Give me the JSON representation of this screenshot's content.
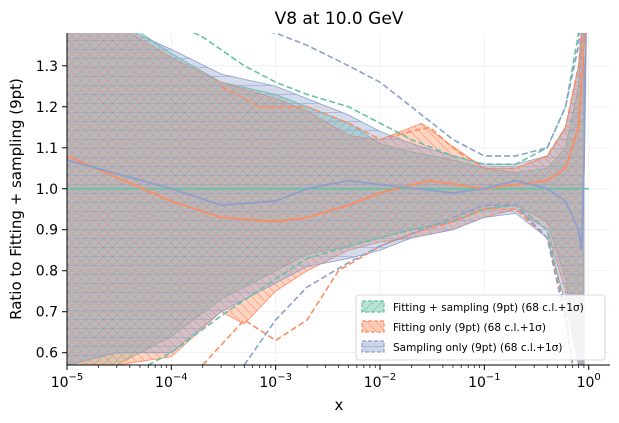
{
  "chart_data": {
    "type": "line",
    "title": "V8 at 10.0 GeV",
    "xlabel": "x",
    "ylabel": "Ratio to Fitting + sampling (9pt)",
    "xscale": "log",
    "xlim": [
      1e-05,
      1.6
    ],
    "ylim": [
      0.57,
      1.38
    ],
    "xticks": [
      {
        "value": 1e-05,
        "base": "10",
        "exp": "−5"
      },
      {
        "value": 0.0001,
        "base": "10",
        "exp": "−4"
      },
      {
        "value": 0.001,
        "base": "10",
        "exp": "−3"
      },
      {
        "value": 0.01,
        "base": "10",
        "exp": "−2"
      },
      {
        "value": 0.1,
        "base": "10",
        "exp": "−1"
      },
      {
        "value": 1,
        "base": "10",
        "exp": "0"
      }
    ],
    "yticks": [
      {
        "value": 0.6,
        "label": "0.6"
      },
      {
        "value": 0.7,
        "label": "0.7"
      },
      {
        "value": 0.8,
        "label": "0.8"
      },
      {
        "value": 0.9,
        "label": "0.9"
      },
      {
        "value": 1.0,
        "label": "1.0"
      },
      {
        "value": 1.1,
        "label": "1.1"
      },
      {
        "value": 1.2,
        "label": "1.2"
      },
      {
        "value": 1.3,
        "label": "1.3"
      }
    ],
    "grid": true,
    "legend_position": "lower-right",
    "series": [
      {
        "name": "Fitting + sampling (9pt) (68 c.l.+1σ)",
        "color": "#66c2a5",
        "band_upper": [
          [
            1e-05,
            1.42
          ],
          [
            3e-05,
            1.42
          ],
          [
            0.0001,
            1.33
          ],
          [
            0.0003,
            1.26
          ],
          [
            0.001,
            1.23
          ],
          [
            0.002,
            1.2
          ],
          [
            0.005,
            1.16
          ],
          [
            0.01,
            1.11
          ],
          [
            0.02,
            1.09
          ],
          [
            0.05,
            1.07
          ],
          [
            0.1,
            1.05
          ],
          [
            0.2,
            1.04
          ],
          [
            0.4,
            1.05
          ],
          [
            0.6,
            1.1
          ],
          [
            0.8,
            1.25
          ],
          [
            0.9,
            1.45
          ]
        ],
        "band_lower": [
          [
            1e-05,
            0.57
          ],
          [
            3e-05,
            0.57
          ],
          [
            0.0001,
            0.64
          ],
          [
            0.0003,
            0.73
          ],
          [
            0.001,
            0.8
          ],
          [
            0.002,
            0.84
          ],
          [
            0.005,
            0.86
          ],
          [
            0.01,
            0.88
          ],
          [
            0.02,
            0.9
          ],
          [
            0.05,
            0.92
          ],
          [
            0.1,
            0.95
          ],
          [
            0.2,
            0.96
          ],
          [
            0.4,
            0.92
          ],
          [
            0.6,
            0.78
          ],
          [
            0.8,
            0.57
          ],
          [
            0.9,
            0.5
          ]
        ],
        "central": [
          [
            1e-05,
            1.0
          ],
          [
            1.0,
            1.0
          ]
        ],
        "upper_line": [
          [
            8e-05,
            1.42
          ],
          [
            0.0002,
            1.37
          ],
          [
            0.0005,
            1.3
          ],
          [
            0.001,
            1.26
          ],
          [
            0.002,
            1.23
          ],
          [
            0.005,
            1.2
          ],
          [
            0.01,
            1.16
          ],
          [
            0.02,
            1.12
          ],
          [
            0.05,
            1.08
          ],
          [
            0.1,
            1.06
          ],
          [
            0.2,
            1.06
          ],
          [
            0.4,
            1.1
          ],
          [
            0.6,
            1.2
          ],
          [
            0.8,
            1.38
          ],
          [
            0.9,
            1.5
          ]
        ],
        "lower_line": [
          [
            6e-05,
            0.57
          ],
          [
            0.0001,
            0.6
          ],
          [
            0.0003,
            0.69
          ],
          [
            0.001,
            0.78
          ],
          [
            0.002,
            0.83
          ],
          [
            0.005,
            0.86
          ],
          [
            0.01,
            0.88
          ],
          [
            0.02,
            0.9
          ],
          [
            0.05,
            0.92
          ],
          [
            0.1,
            0.95
          ],
          [
            0.2,
            0.96
          ],
          [
            0.4,
            0.9
          ],
          [
            0.6,
            0.7
          ],
          [
            0.7,
            0.57
          ]
        ]
      },
      {
        "name": "Fitting only (9pt) (68 c.l.+1σ)",
        "color": "#fc8d62",
        "band_upper": [
          [
            1e-05,
            1.42
          ],
          [
            3e-05,
            1.4
          ],
          [
            0.0001,
            1.32
          ],
          [
            0.0003,
            1.26
          ],
          [
            0.001,
            1.22
          ],
          [
            0.002,
            1.19
          ],
          [
            0.005,
            1.13
          ],
          [
            0.01,
            1.12
          ],
          [
            0.02,
            1.15
          ],
          [
            0.025,
            1.16
          ],
          [
            0.04,
            1.12
          ],
          [
            0.1,
            1.05
          ],
          [
            0.2,
            1.05
          ],
          [
            0.4,
            1.08
          ],
          [
            0.6,
            1.15
          ],
          [
            0.8,
            1.3
          ],
          [
            0.9,
            1.45
          ]
        ],
        "band_lower": [
          [
            1e-05,
            0.57
          ],
          [
            3e-05,
            0.57
          ],
          [
            0.0001,
            0.59
          ],
          [
            0.0003,
            0.7
          ],
          [
            0.0005,
            0.67
          ],
          [
            0.001,
            0.75
          ],
          [
            0.002,
            0.8
          ],
          [
            0.005,
            0.85
          ],
          [
            0.01,
            0.87
          ],
          [
            0.02,
            0.88
          ],
          [
            0.05,
            0.9
          ],
          [
            0.1,
            0.93
          ],
          [
            0.2,
            0.95
          ],
          [
            0.4,
            0.9
          ],
          [
            0.6,
            0.75
          ],
          [
            0.8,
            0.57
          ],
          [
            0.9,
            0.5
          ]
        ],
        "central": [
          [
            1e-05,
            1.08
          ],
          [
            0.0001,
            0.97
          ],
          [
            0.0003,
            0.93
          ],
          [
            0.001,
            0.92
          ],
          [
            0.002,
            0.93
          ],
          [
            0.005,
            0.96
          ],
          [
            0.01,
            0.99
          ],
          [
            0.03,
            1.02
          ],
          [
            0.1,
            1.0
          ],
          [
            0.2,
            1.01
          ],
          [
            0.4,
            1.02
          ],
          [
            0.6,
            1.05
          ],
          [
            0.8,
            1.15
          ],
          [
            0.9,
            1.35
          ],
          [
            0.95,
            1.45
          ]
        ],
        "upper_line": [
          [
            0.0003,
            1.25
          ],
          [
            0.0007,
            1.2
          ],
          [
            0.001,
            1.2
          ],
          [
            0.002,
            1.2
          ],
          [
            0.005,
            1.16
          ],
          [
            0.01,
            1.12
          ],
          [
            0.02,
            1.14
          ],
          [
            0.03,
            1.15
          ],
          [
            0.05,
            1.1
          ],
          [
            0.1,
            1.05
          ],
          [
            0.2,
            1.05
          ],
          [
            0.4,
            1.08
          ],
          [
            0.6,
            1.15
          ],
          [
            0.8,
            1.3
          ],
          [
            0.9,
            1.45
          ]
        ],
        "lower_line": [
          [
            0.0002,
            0.57
          ],
          [
            0.0005,
            0.68
          ],
          [
            0.001,
            0.63
          ],
          [
            0.002,
            0.68
          ],
          [
            0.004,
            0.8
          ],
          [
            0.01,
            0.86
          ],
          [
            0.02,
            0.89
          ],
          [
            0.05,
            0.92
          ],
          [
            0.1,
            0.95
          ],
          [
            0.2,
            0.95
          ],
          [
            0.4,
            0.88
          ],
          [
            0.6,
            0.7
          ],
          [
            0.7,
            0.57
          ]
        ]
      },
      {
        "name": "Sampling only (9pt) (68 c.l.+1σ)",
        "color": "#8da0cb",
        "band_upper": [
          [
            1e-05,
            1.42
          ],
          [
            3e-05,
            1.4
          ],
          [
            0.0001,
            1.34
          ],
          [
            0.0003,
            1.28
          ],
          [
            0.001,
            1.25
          ],
          [
            0.002,
            1.22
          ],
          [
            0.005,
            1.18
          ],
          [
            0.01,
            1.14
          ],
          [
            0.02,
            1.11
          ],
          [
            0.05,
            1.08
          ],
          [
            0.1,
            1.06
          ],
          [
            0.2,
            1.06
          ],
          [
            0.4,
            1.08
          ],
          [
            0.6,
            1.15
          ],
          [
            0.8,
            1.3
          ],
          [
            0.9,
            1.45
          ]
        ],
        "band_lower": [
          [
            1e-05,
            0.57
          ],
          [
            3e-05,
            0.6
          ],
          [
            0.0001,
            0.6
          ],
          [
            0.0003,
            0.7
          ],
          [
            0.001,
            0.77
          ],
          [
            0.002,
            0.81
          ],
          [
            0.005,
            0.83
          ],
          [
            0.01,
            0.85
          ],
          [
            0.02,
            0.88
          ],
          [
            0.05,
            0.9
          ],
          [
            0.1,
            0.93
          ],
          [
            0.2,
            0.94
          ],
          [
            0.4,
            0.88
          ],
          [
            0.6,
            0.72
          ],
          [
            0.8,
            0.57
          ],
          [
            0.9,
            0.5
          ]
        ],
        "central": [
          [
            1e-05,
            1.07
          ],
          [
            0.0001,
            1.0
          ],
          [
            0.0003,
            0.96
          ],
          [
            0.001,
            0.97
          ],
          [
            0.002,
            1.0
          ],
          [
            0.005,
            1.02
          ],
          [
            0.01,
            1.01
          ],
          [
            0.05,
            0.99
          ],
          [
            0.1,
            1.0
          ],
          [
            0.2,
            1.02
          ],
          [
            0.4,
            1.0
          ],
          [
            0.6,
            0.97
          ],
          [
            0.8,
            0.9
          ],
          [
            0.85,
            0.85
          ],
          [
            0.9,
            1.05
          ],
          [
            0.95,
            1.45
          ]
        ],
        "upper_line": [
          [
            0.00015,
            1.42
          ],
          [
            0.0003,
            1.4
          ],
          [
            0.001,
            1.38
          ],
          [
            0.002,
            1.35
          ],
          [
            0.005,
            1.3
          ],
          [
            0.01,
            1.26
          ],
          [
            0.02,
            1.2
          ],
          [
            0.05,
            1.12
          ],
          [
            0.1,
            1.08
          ],
          [
            0.2,
            1.08
          ],
          [
            0.4,
            1.1
          ],
          [
            0.6,
            1.2
          ],
          [
            0.8,
            1.35
          ],
          [
            0.9,
            1.5
          ]
        ],
        "lower_line": [
          [
            0.0005,
            0.57
          ],
          [
            0.001,
            0.68
          ],
          [
            0.002,
            0.76
          ],
          [
            0.005,
            0.82
          ],
          [
            0.01,
            0.86
          ],
          [
            0.02,
            0.89
          ],
          [
            0.05,
            0.93
          ],
          [
            0.1,
            0.96
          ],
          [
            0.2,
            0.96
          ],
          [
            0.4,
            0.88
          ],
          [
            0.6,
            0.68
          ],
          [
            0.7,
            0.57
          ]
        ]
      }
    ]
  }
}
